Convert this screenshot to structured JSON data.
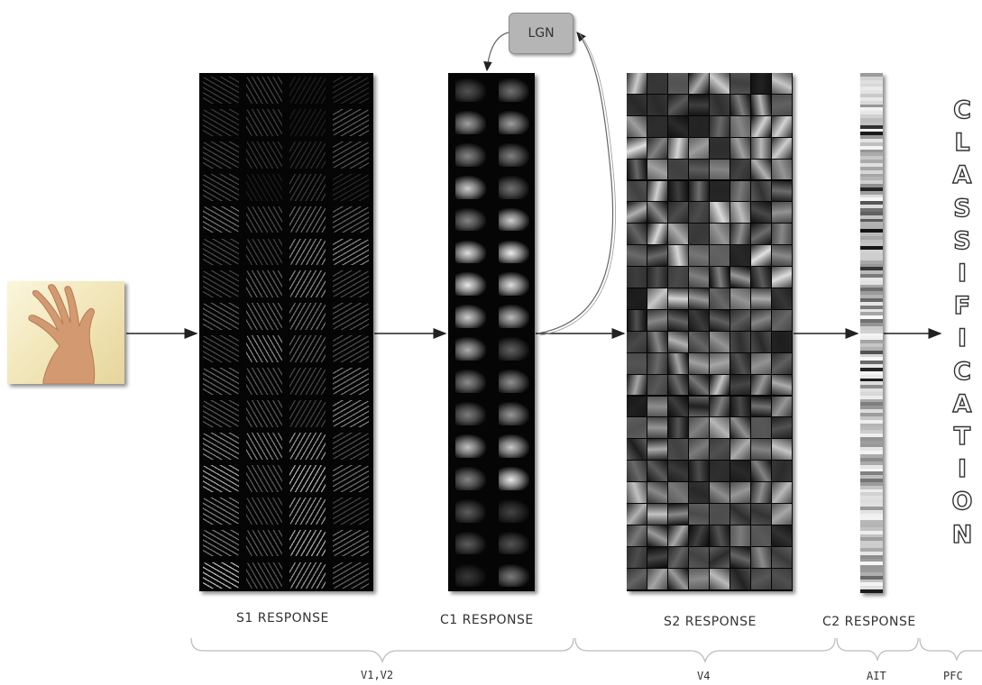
{
  "stages": {
    "s1": "S1 RESPONSE",
    "c1": "C1 RESPONSE",
    "s2": "S2 RESPONSE",
    "c2": "C2 RESPONSE"
  },
  "lgn": "LGN",
  "areas": {
    "v1v2": "V1,V2",
    "v4": "V4",
    "ait": "AIT",
    "pfc": "PFC"
  },
  "classification": [
    "C",
    "L",
    "A",
    "S",
    "S",
    "I",
    "F",
    "I",
    "C",
    "A",
    "T",
    "I",
    "O",
    "N"
  ],
  "colors": {
    "panel_background": "#050505",
    "arrow": "#222222",
    "lgn_box": "#b5b5b5"
  }
}
